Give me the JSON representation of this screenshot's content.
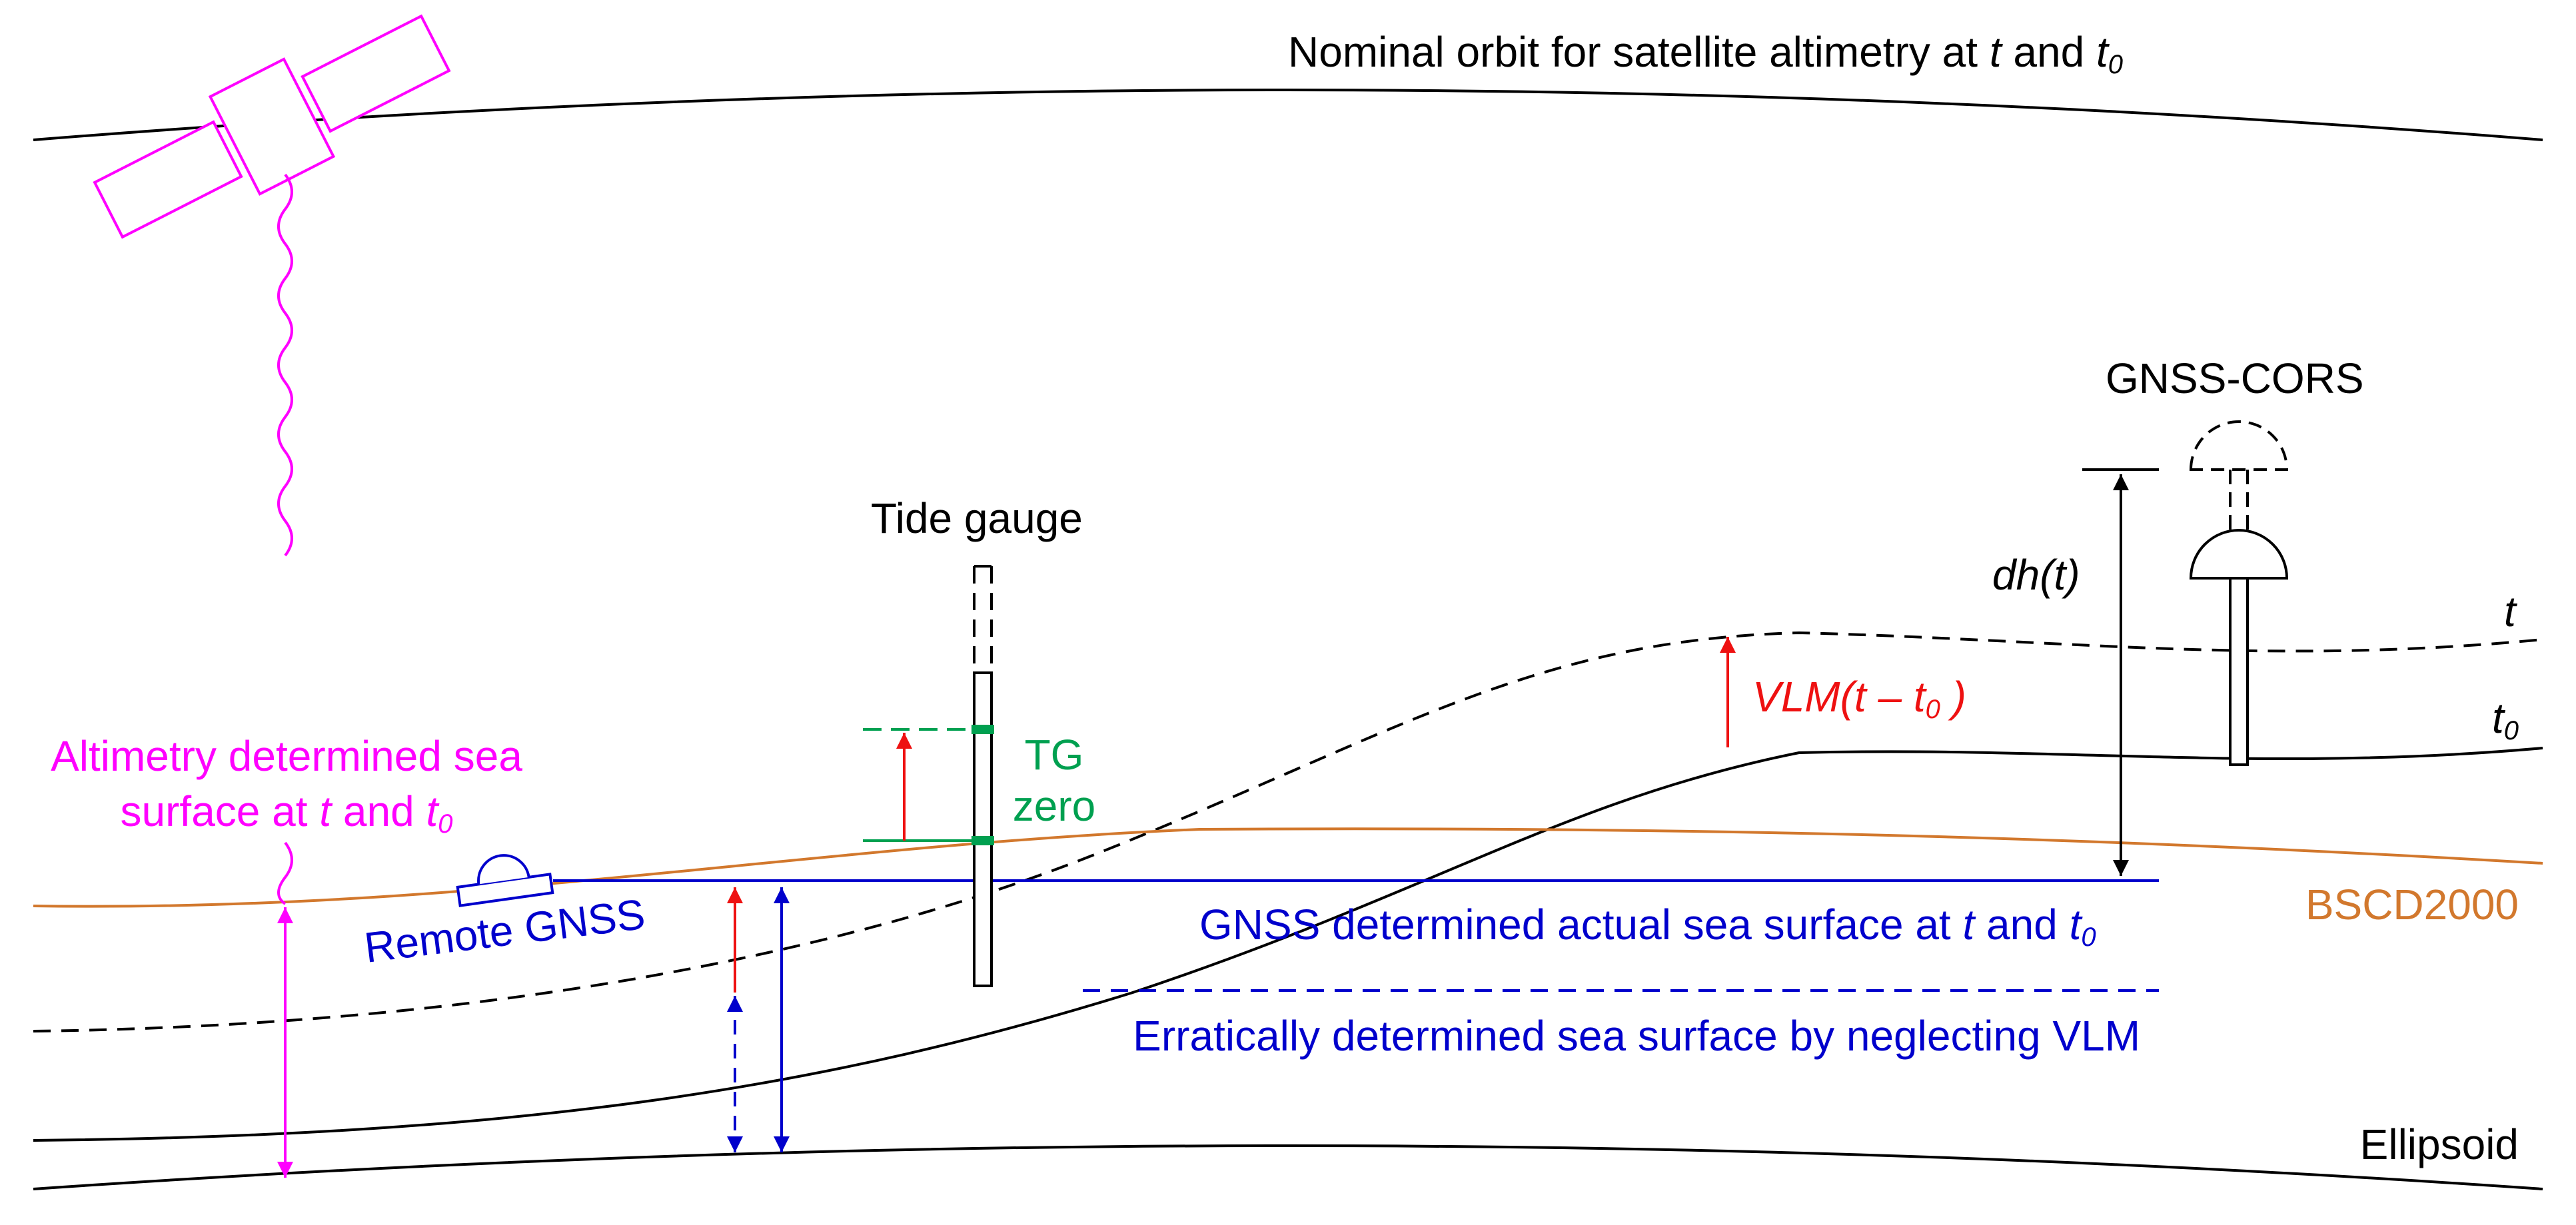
{
  "labels": {
    "orbit_prefix": "Nominal orbit for satellite altimetry at ",
    "orbit_t": "t",
    "orbit_and": " and ",
    "orbit_t0_base": "t",
    "orbit_t0_sub": "0",
    "gnss_cors": "GNSS-CORS",
    "tide_gauge": "Tide gauge",
    "dh": "dh(t)",
    "curve_t": "t",
    "curve_t0_base": "t",
    "curve_t0_sub": "0",
    "vlm_prefix": "VLM(t – t",
    "vlm_sub": "0",
    "vlm_suffix": " )",
    "tg_zero_line1": "TG",
    "tg_zero_line2": "zero",
    "altimetry_line1": "Altimetry determined sea",
    "altimetry_line2_prefix": "surface at ",
    "altimetry_t": "t",
    "altimetry_and": " and ",
    "altimetry_t0_base": "t",
    "altimetry_t0_sub": "0",
    "remote_gnss": "Remote GNSS",
    "gnss_surface_prefix": "GNSS determined actual sea surface at ",
    "gnss_surface_t": "t",
    "gnss_surface_and": " and ",
    "gnss_surface_t0_base": "t",
    "gnss_surface_t0_sub": "0",
    "bscd2000": "BSCD2000",
    "erratic": "Erratically determined sea surface by neglecting VLM",
    "ellipsoid": "Ellipsoid"
  },
  "colors": {
    "black": "#000000",
    "magenta": "#ff00ff",
    "blue": "#0000cc",
    "red": "#ee1111",
    "green": "#00a050",
    "orange": "#d2782d"
  }
}
